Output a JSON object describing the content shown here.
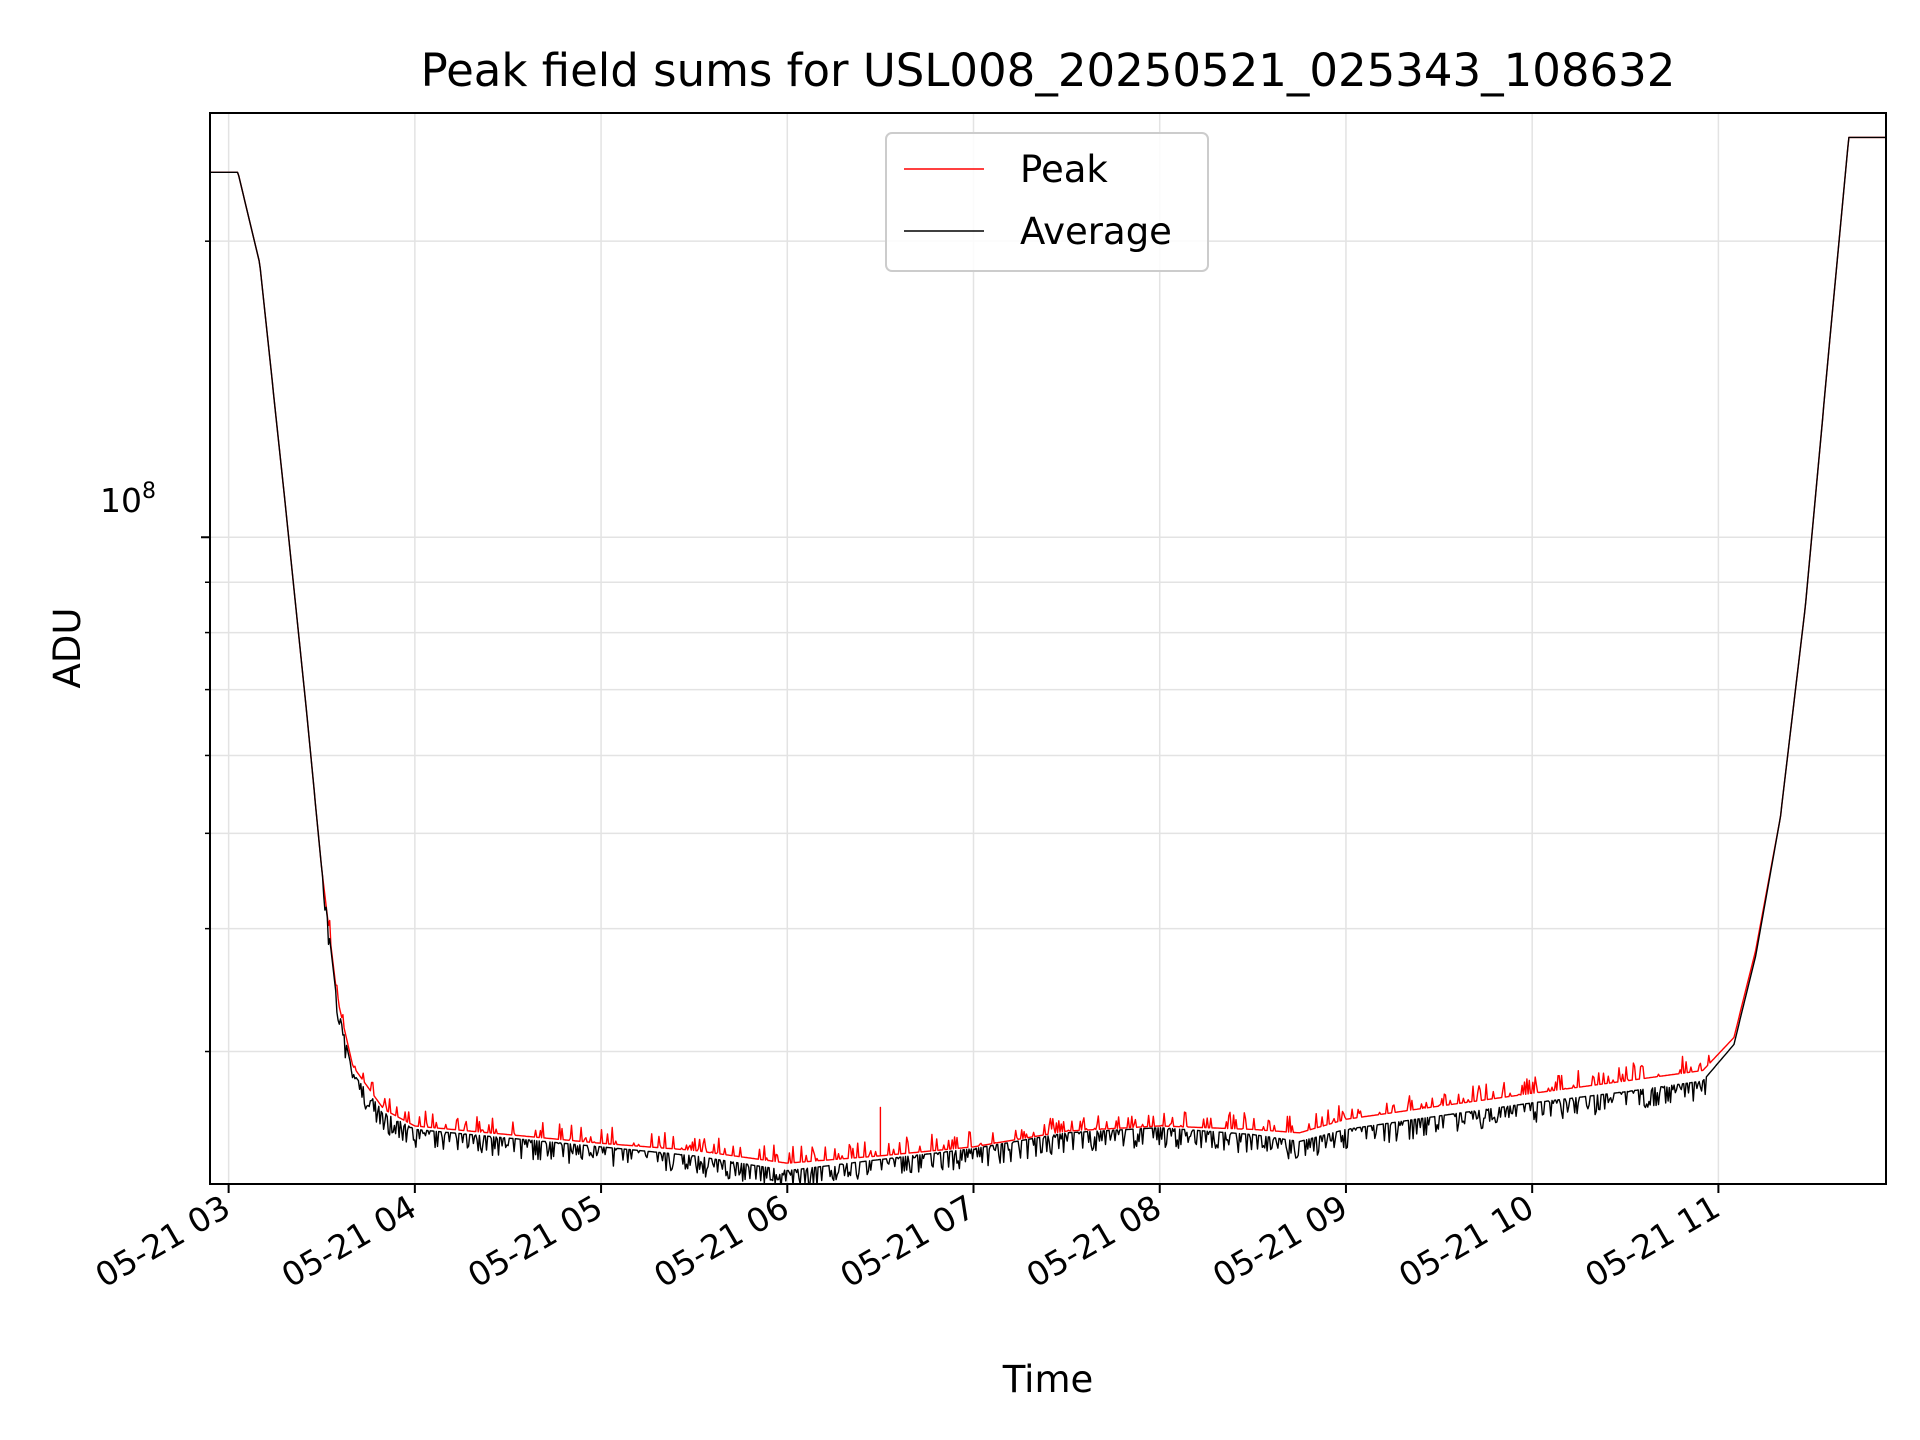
{
  "chart_data": {
    "type": "line",
    "title": "Peak field sums for USL008_20250521_025343_108632",
    "xlabel": "Time",
    "ylabel": "ADU",
    "x_tick_labels": [
      "05-21 03",
      "05-21 04",
      "05-21 05",
      "05-21 06",
      "05-21 07",
      "05-21 08",
      "05-21 09",
      "05-21 10",
      "05-21 11"
    ],
    "y_tick_label": {
      "base": "10",
      "exponent": "8"
    },
    "y_scale": "log",
    "xlim": [
      "2025-05-21T02:54",
      "2025-05-21T11:54"
    ],
    "ylim": [
      22000000,
      270000000
    ],
    "grid": true,
    "legend": {
      "placement": "top-center",
      "entries": [
        "Peak",
        "Average"
      ]
    },
    "colors": {
      "Peak": "#ff0000",
      "Average": "#000000"
    },
    "series": [
      {
        "name": "Peak",
        "x": [
          "2025-05-21T02:54",
          "2025-05-21T03:03",
          "2025-05-21T03:10",
          "2025-05-21T03:18",
          "2025-05-21T03:25",
          "2025-05-21T03:30",
          "2025-05-21T03:35",
          "2025-05-21T03:40",
          "2025-05-21T03:50",
          "2025-05-21T04:00",
          "2025-05-21T04:30",
          "2025-05-21T05:00",
          "2025-05-21T05:30",
          "2025-05-21T06:00",
          "2025-05-21T06:30",
          "2025-05-21T07:00",
          "2025-05-21T07:30",
          "2025-05-21T08:00",
          "2025-05-21T08:30",
          "2025-05-21T08:45",
          "2025-05-21T09:00",
          "2025-05-21T09:30",
          "2025-05-21T10:00",
          "2025-05-21T10:30",
          "2025-05-21T10:55",
          "2025-05-21T11:05",
          "2025-05-21T11:12",
          "2025-05-21T11:20",
          "2025-05-21T11:28",
          "2025-05-21T11:36",
          "2025-05-21T11:42",
          "2025-05-21T11:54"
        ],
        "y": [
          235000000,
          235000000,
          190000000,
          110000000,
          67000000,
          46000000,
          34000000,
          29000000,
          26200000,
          25200000,
          24700000,
          24200000,
          23800000,
          23100000,
          23500000,
          24000000,
          24900000,
          25200000,
          25000000,
          24800000,
          25600000,
          26400000,
          27200000,
          28000000,
          28700000,
          31000000,
          38000000,
          52000000,
          85000000,
          160000000,
          255000000,
          255000000
        ]
      },
      {
        "name": "Average",
        "x": [
          "2025-05-21T02:54",
          "2025-05-21T03:03",
          "2025-05-21T03:10",
          "2025-05-21T03:18",
          "2025-05-21T03:25",
          "2025-05-21T03:30",
          "2025-05-21T03:35",
          "2025-05-21T03:40",
          "2025-05-21T03:50",
          "2025-05-21T04:00",
          "2025-05-21T04:30",
          "2025-05-21T05:00",
          "2025-05-21T05:30",
          "2025-05-21T06:00",
          "2025-05-21T06:30",
          "2025-05-21T07:00",
          "2025-05-21T07:30",
          "2025-05-21T08:00",
          "2025-05-21T08:30",
          "2025-05-21T08:45",
          "2025-05-21T09:00",
          "2025-05-21T09:30",
          "2025-05-21T10:00",
          "2025-05-21T10:30",
          "2025-05-21T10:55",
          "2025-05-21T11:05",
          "2025-05-21T11:12",
          "2025-05-21T11:20",
          "2025-05-21T11:28",
          "2025-05-21T11:36",
          "2025-05-21T11:42",
          "2025-05-21T11:54"
        ],
        "y": [
          235000000,
          235000000,
          190000000,
          110000000,
          67000000,
          46000000,
          33500000,
          28500000,
          26000000,
          25000000,
          24500000,
          24000000,
          23500000,
          22700000,
          23300000,
          23900000,
          24800000,
          25100000,
          24700000,
          24300000,
          25000000,
          25800000,
          26600000,
          27300000,
          28000000,
          30500000,
          37500000,
          52000000,
          85000000,
          160000000,
          255000000,
          255000000
        ]
      }
    ]
  }
}
